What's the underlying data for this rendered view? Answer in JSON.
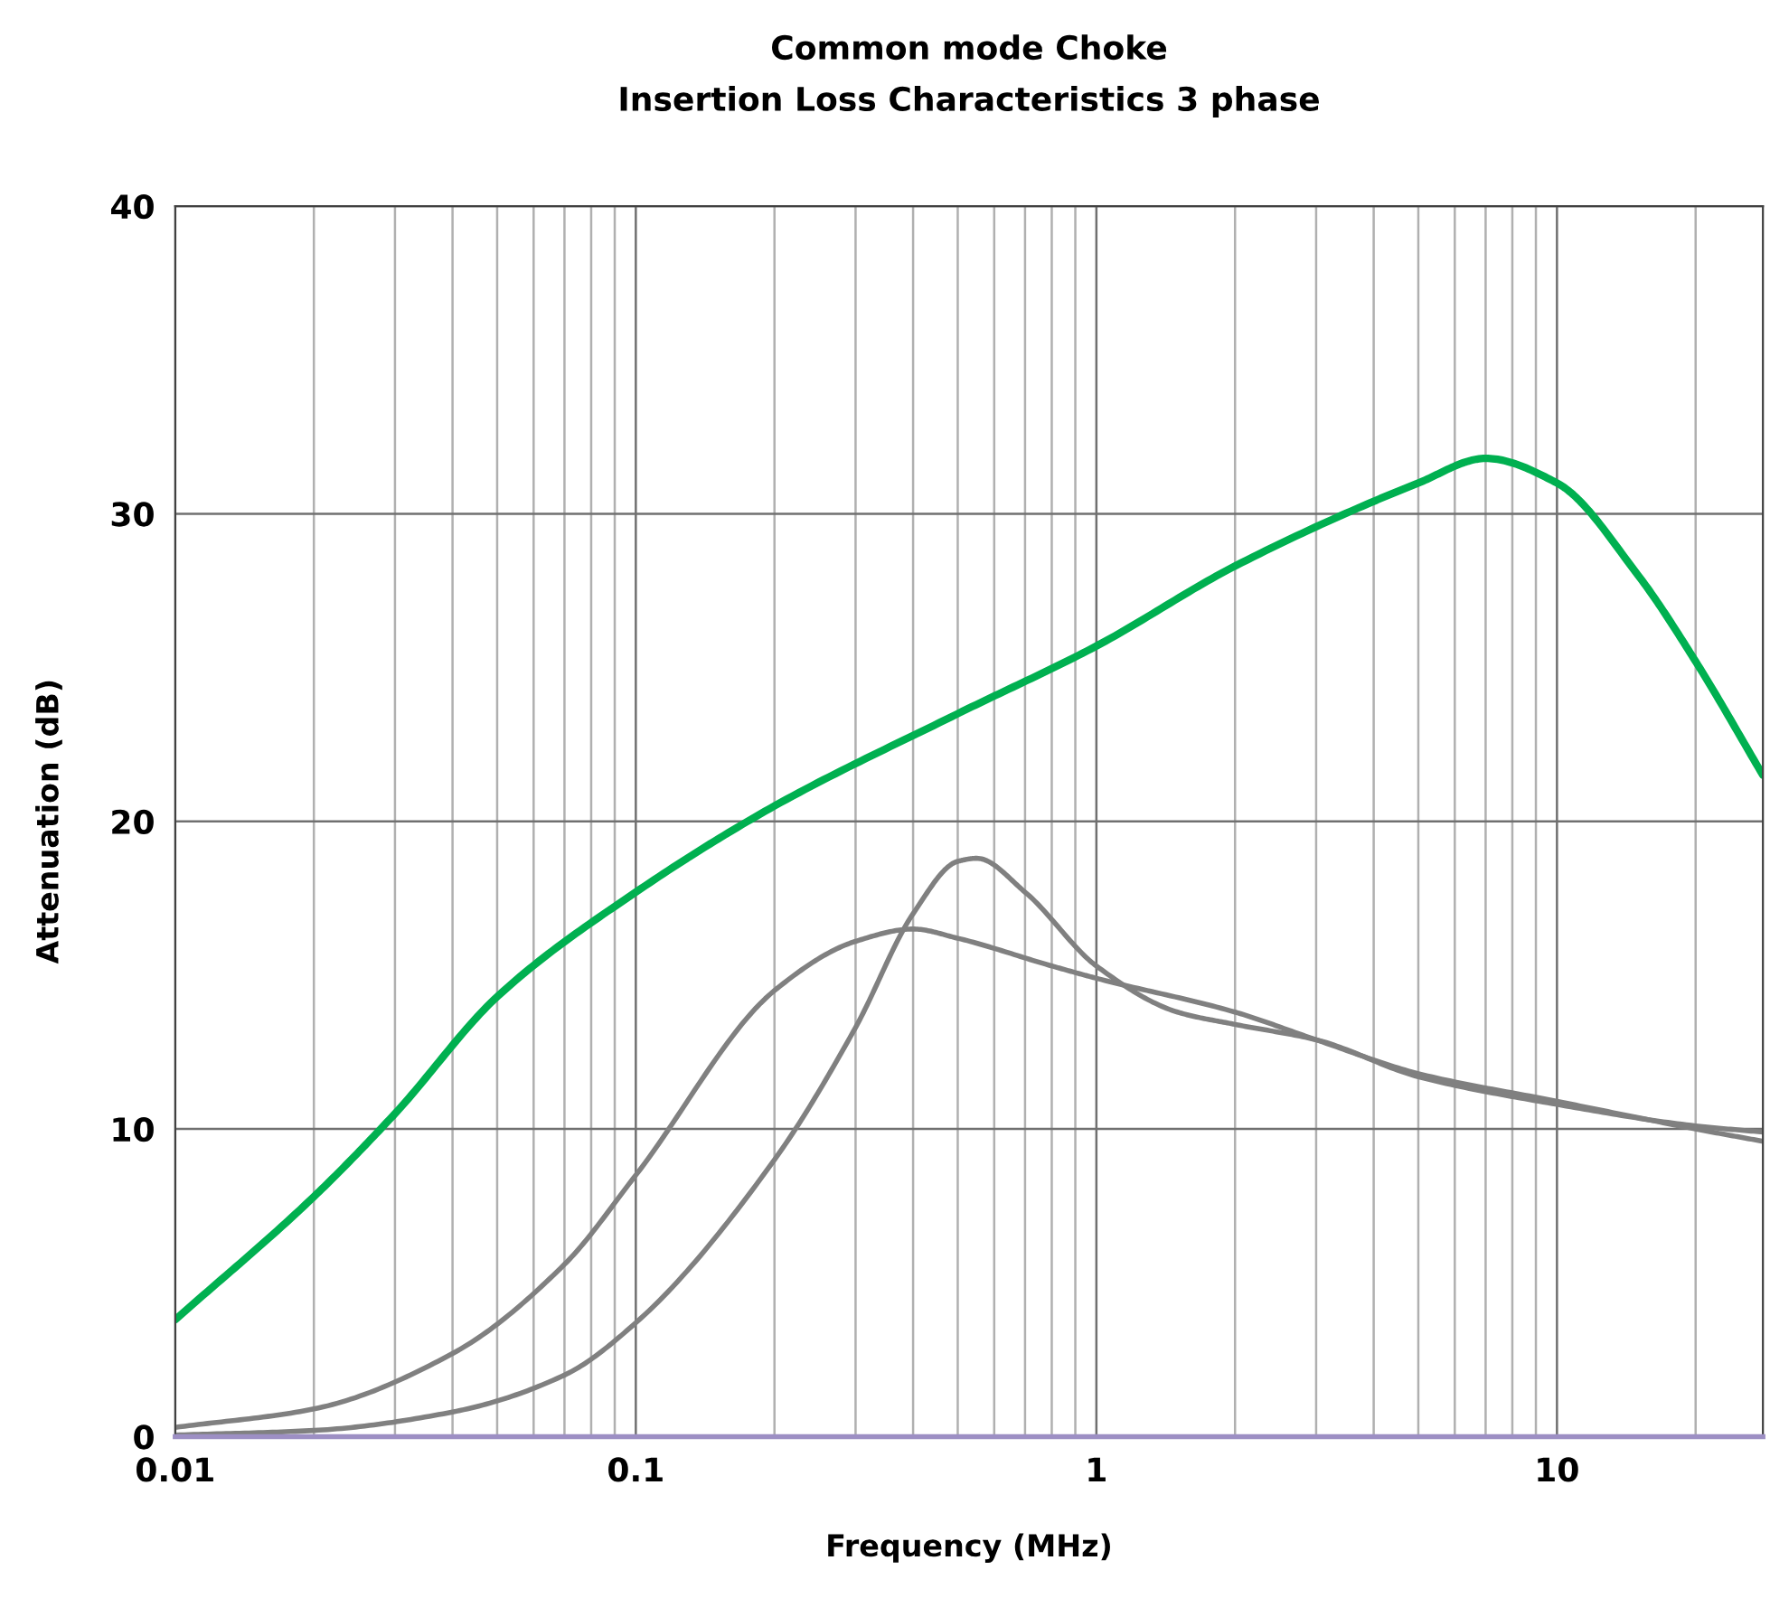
{
  "chart_data": {
    "type": "line",
    "title": "Common mode Choke\nInsertion Loss Characteristics 3 phase",
    "xlabel": "Frequency (MHz)",
    "ylabel": "Attenuation (dB)",
    "log": "x",
    "grid": true,
    "marker": "none",
    "line_style": "solid",
    "xlim": [
      0.01,
      28
    ],
    "xticks": [
      0.01,
      0.1,
      1,
      10
    ],
    "ylim": [
      0,
      40
    ],
    "yticks": [
      0,
      10,
      20,
      30,
      40
    ],
    "series": [
      {
        "color": "#00b050",
        "x": [
          0.01,
          0.02,
          0.03,
          0.05,
          0.1,
          0.2,
          0.5,
          1,
          2,
          5,
          7,
          10,
          15,
          20,
          28
        ],
        "values": [
          3.8,
          7.8,
          10.5,
          14.3,
          17.7,
          20.5,
          23.5,
          25.7,
          28.3,
          31.0,
          31.8,
          31.0,
          28.0,
          25.2,
          21.5
        ]
      },
      {
        "color": "#808080",
        "x": [
          0.01,
          0.02,
          0.04,
          0.07,
          0.1,
          0.2,
          0.3,
          0.4,
          0.5,
          0.8,
          1,
          2,
          3,
          5,
          10,
          20,
          28
        ],
        "values": [
          0.3,
          0.9,
          2.7,
          5.6,
          8.5,
          14.5,
          16.1,
          16.5,
          16.2,
          15.3,
          14.9,
          13.8,
          12.9,
          11.8,
          10.9,
          10.0,
          9.6
        ]
      },
      {
        "color": "#808080",
        "x": [
          0.01,
          0.02,
          0.04,
          0.07,
          0.1,
          0.2,
          0.3,
          0.4,
          0.5,
          0.55,
          0.7,
          1,
          1.5,
          2,
          3,
          5,
          10,
          20,
          28
        ],
        "values": [
          0.05,
          0.2,
          0.8,
          2.0,
          3.7,
          9.0,
          13.3,
          17.0,
          18.7,
          18.8,
          17.7,
          15.3,
          13.8,
          13.4,
          12.9,
          11.7,
          10.8,
          10.1,
          9.9
        ]
      }
    ]
  }
}
